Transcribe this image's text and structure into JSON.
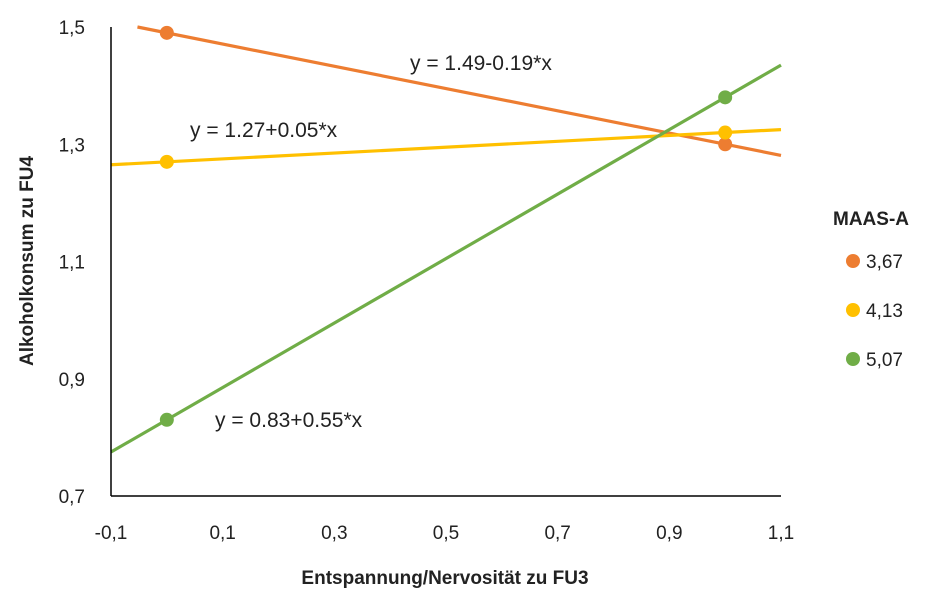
{
  "chart_data": {
    "type": "line",
    "xlabel": "Entspannung/Nervosität zu FU3",
    "ylabel": "Alkoholkonsum zu FU4",
    "xlim": [
      -0.1,
      1.1
    ],
    "ylim": [
      0.7,
      1.5
    ],
    "x_ticks": [
      "-0,1",
      "0,1",
      "0,3",
      "0,5",
      "0,7",
      "0,9",
      "1,1"
    ],
    "y_ticks": [
      "0,7",
      "0,9",
      "1,1",
      "1,3",
      "1,5"
    ],
    "grid": false,
    "legend": {
      "title": "MAAS-A",
      "position": "right"
    },
    "series": [
      {
        "name": "3,67",
        "color": "#ED7D31",
        "points": [
          [
            0,
            1.49
          ],
          [
            1,
            1.3
          ]
        ],
        "intercept": 1.49,
        "slope": -0.19,
        "equation": "y = 1.49-0.19*x"
      },
      {
        "name": "4,13",
        "color": "#FFC000",
        "points": [
          [
            0,
            1.27
          ],
          [
            1,
            1.32
          ]
        ],
        "intercept": 1.27,
        "slope": 0.05,
        "equation": "y = 1.27+0.05*x"
      },
      {
        "name": "5,07",
        "color": "#70AD47",
        "points": [
          [
            0,
            0.83
          ],
          [
            1,
            1.38
          ]
        ],
        "intercept": 0.83,
        "slope": 0.55,
        "equation": "y = 0.83+0.55*x"
      }
    ]
  }
}
